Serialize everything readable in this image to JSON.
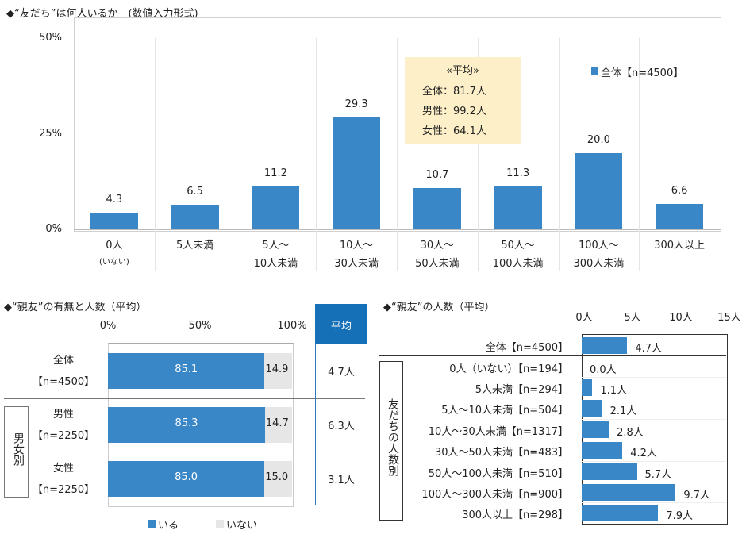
{
  "chart_data": [
    {
      "type": "bar",
      "title": "◆“友だち”は何人いるか　(数値入力形式)",
      "ylim": [
        0,
        50
      ],
      "yticks": [
        "0%",
        "25%",
        "50%"
      ],
      "categories": [
        [
          "0人",
          "(いない)"
        ],
        [
          "5人未満",
          ""
        ],
        [
          "5人～",
          "10人未満"
        ],
        [
          "10人～",
          "30人未満"
        ],
        [
          "30人～",
          "50人未満"
        ],
        [
          "50人～",
          "100人未満"
        ],
        [
          "100人～",
          "300人未満"
        ],
        [
          "300人以上",
          ""
        ]
      ],
      "values": [
        4.3,
        6.5,
        11.2,
        29.3,
        10.7,
        11.3,
        20.0,
        6.6
      ],
      "value_labels": [
        "4.3",
        "6.5",
        "11.2",
        "29.3",
        "10.7",
        "11.3",
        "20.0",
        "6.6"
      ],
      "legend": "全体【n=4500】",
      "legend_position": "top-right",
      "average_box": {
        "title": "«平均»",
        "lines": [
          "全体：81.7人",
          "男性：99.2人",
          "女性：64.1人"
        ]
      },
      "color": "#3a87c8"
    },
    {
      "type": "bar",
      "orientation": "horizontal",
      "stacked": true,
      "title": "◆“親友”の有無と人数（平均）",
      "xlim": [
        0,
        100
      ],
      "xticks": [
        "0%",
        "50%",
        "100%"
      ],
      "categories": [
        [
          "全体",
          "【n=4500】"
        ],
        [
          "男性",
          "【n=2250】"
        ],
        [
          "女性",
          "【n=2250】"
        ]
      ],
      "group_label": "男女別",
      "series": [
        {
          "name": "いる",
          "values": [
            85.1,
            85.3,
            85.0
          ],
          "labels": [
            "85.1",
            "85.3",
            "85.0"
          ],
          "color": "#3a87c8"
        },
        {
          "name": "いない",
          "values": [
            14.9,
            14.7,
            15.0
          ],
          "labels": [
            "14.9",
            "14.7",
            "15.0"
          ],
          "color": "#e6e6e6"
        }
      ],
      "average_header": "平均",
      "averages": [
        "4.7人",
        "6.3人",
        "3.1人"
      ]
    },
    {
      "type": "bar",
      "orientation": "horizontal",
      "title": "◆“親友”の人数（平均）",
      "xlim": [
        0,
        15
      ],
      "xticks": [
        "0人",
        "5人",
        "10人",
        "15人"
      ],
      "group_label": "友だちの人数別",
      "categories": [
        "全体【n=4500】",
        "0人（いない）【n=194】",
        "5人未満【n=294】",
        "5人～10人未満【n=504】",
        "10人～30人未満【n=1317】",
        "30人～50人未満【n=483】",
        "50人～100人未満【n=510】",
        "100人～300人未満【n=900】",
        "300人以上【n=298】"
      ],
      "values": [
        4.7,
        0.0,
        1.1,
        2.1,
        2.8,
        4.2,
        5.7,
        9.7,
        7.9
      ],
      "value_labels": [
        "4.7人",
        "0.0人",
        "1.1人",
        "2.1人",
        "2.8人",
        "4.2人",
        "5.7人",
        "9.7人",
        "7.9人"
      ]
    }
  ]
}
